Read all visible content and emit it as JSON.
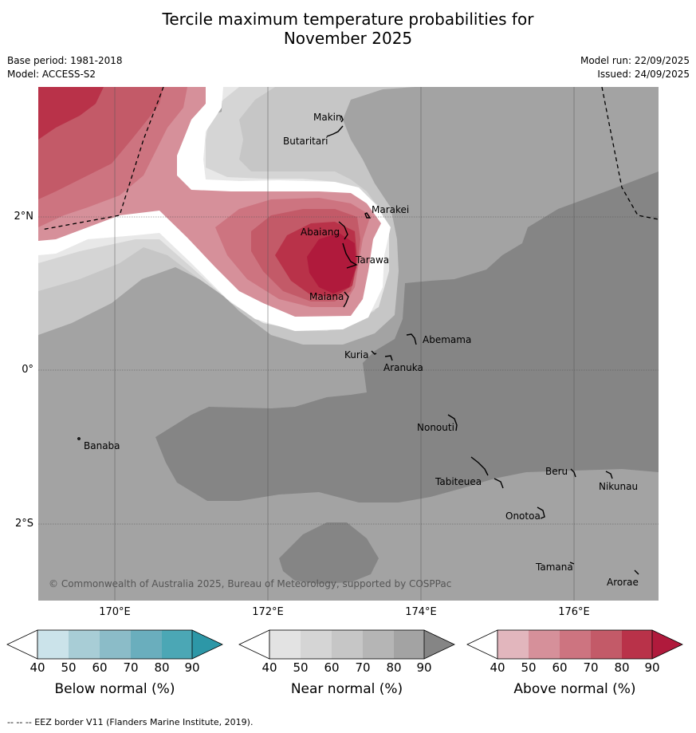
{
  "title_line1": "Tercile maximum temperature probabilities for",
  "title_line2": "November 2025",
  "base_period": "Base period: 1981-2018",
  "model": "Model: ACCESS-S2",
  "model_run": "Model run: 22/09/2025",
  "issued": "Issued: 24/09/2025",
  "copyright": "© Commonwealth of Australia 2025, Bureau of Meteorology, supported by COSPPac",
  "lon_labels": [
    "170°E",
    "172°E",
    "174°E",
    "176°E"
  ],
  "lat_labels": [
    "2°N",
    "0°",
    "2°S"
  ],
  "places": {
    "makin": "Makin",
    "butaritari": "Butaritari",
    "marakei": "Marakei",
    "abaiang": "Abaiang",
    "tarawa": "Tarawa",
    "maiana": "Maiana",
    "abemama": "Abemama",
    "kuria": "Kuria",
    "aranuka": "Aranuka",
    "nonouti": "Nonouti",
    "banaba": "Banaba",
    "beru": "Beru",
    "nikunau": "Nikunau",
    "tabiteuea": "Tabiteuea",
    "onotoa": "Onotoa",
    "tamana": "Tamana",
    "arorae": "Arorae"
  },
  "colorbars": {
    "below": {
      "title": "Below normal (%)",
      "ticks": [
        "40",
        "50",
        "60",
        "70",
        "80",
        "90"
      ],
      "colors": [
        "#ffffff",
        "#cbe3ea",
        "#a8cdd6",
        "#8bbcc8",
        "#6aaebd",
        "#4ba7b5",
        "#2d97a7"
      ]
    },
    "near": {
      "title": "Near normal (%)",
      "ticks": [
        "40",
        "50",
        "60",
        "70",
        "80",
        "90"
      ],
      "colors": [
        "#ffffff",
        "#e3e3e3",
        "#d5d5d5",
        "#c6c6c6",
        "#b5b5b5",
        "#a3a3a3",
        "#858585"
      ]
    },
    "above": {
      "title": "Above normal (%)",
      "ticks": [
        "40",
        "50",
        "60",
        "70",
        "80",
        "90"
      ],
      "colors": [
        "#ffffff",
        "#e2b6bd",
        "#d6909a",
        "#cd7480",
        "#c35a68",
        "#b93249",
        "#b01a3c"
      ]
    }
  },
  "footer": "--  --  -- EEZ border V11 (Flanders Marine Institute, 2019)."
}
